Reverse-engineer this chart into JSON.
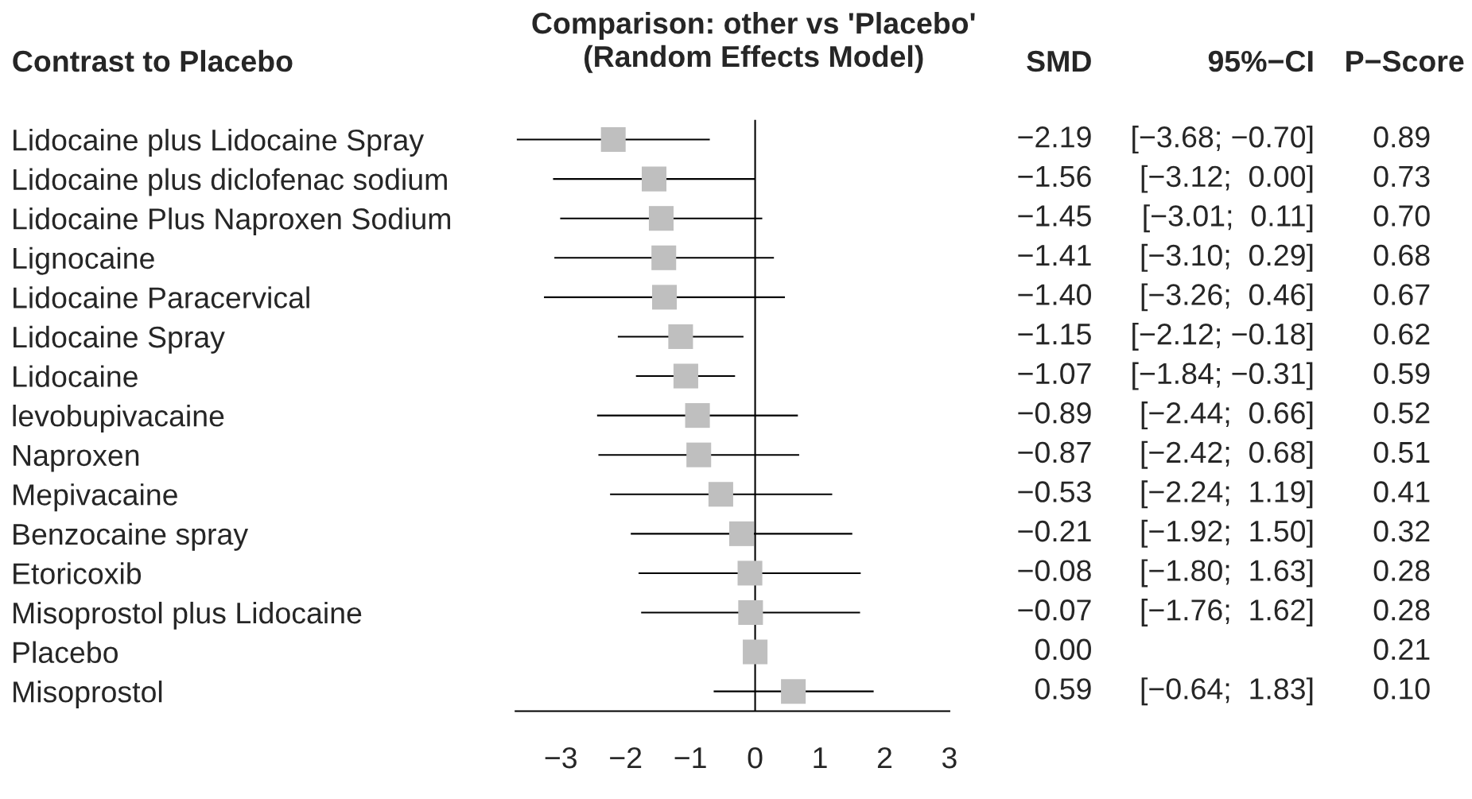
{
  "chart_data": {
    "type": "scatter",
    "orientation": "horizontal",
    "title": "Comparison: other vs 'Placebo'\n(Random Effects Model)",
    "categories": [
      "Lidocaine plus Lidocaine Spray",
      "Lidocaine plus diclofenac sodium",
      "Lidocaine Plus Naproxen Sodium",
      "Lignocaine",
      "Lidocaine Paracervical",
      "Lidocaine Spray",
      "Lidocaine",
      "levobupivacaine",
      "Naproxen",
      "Mepivacaine",
      "Benzocaine spray",
      "Etoricoxib",
      "Misoprostol plus Lidocaine",
      "Placebo",
      "Misoprostol"
    ],
    "values": [
      -2.19,
      -1.56,
      -1.45,
      -1.41,
      -1.4,
      -1.15,
      -1.07,
      -0.89,
      -0.87,
      -0.53,
      -0.21,
      -0.08,
      -0.07,
      0.0,
      0.59
    ],
    "errors": [
      [
        -3.68,
        -0.7
      ],
      [
        -3.12,
        0.0
      ],
      [
        -3.01,
        0.11
      ],
      [
        -3.1,
        0.29
      ],
      [
        -3.26,
        0.46
      ],
      [
        -2.12,
        -0.18
      ],
      [
        -1.84,
        -0.31
      ],
      [
        -2.44,
        0.66
      ],
      [
        -2.42,
        0.68
      ],
      [
        -2.24,
        1.19
      ],
      [
        -1.92,
        1.5
      ],
      [
        -1.8,
        1.63
      ],
      [
        -1.76,
        1.62
      ],
      null,
      [
        -0.64,
        1.83
      ]
    ],
    "value_labels": [
      "−2.19",
      "−1.56",
      "−1.45",
      "−1.41",
      "−1.40",
      "−1.15",
      "−1.07",
      "−0.89",
      "−0.87",
      "−0.53",
      "−0.21",
      "−0.08",
      "−0.07",
      "0.00",
      "0.59"
    ],
    "color": "#bfbfbf",
    "marker": "square",
    "xlim": [
      -3.7,
      3
    ],
    "xticks": [
      {
        "value": -3,
        "label": "−3"
      },
      {
        "value": -2,
        "label": "−2"
      },
      {
        "value": -1,
        "label": "−1"
      },
      0,
      1,
      2,
      3
    ],
    "ref_lines": [
      {
        "axis": "x",
        "value": 0,
        "color": "#000000"
      }
    ],
    "grid": false,
    "annotations": [
      "Contrast to Placebo",
      "SMD",
      "95%−CI",
      "P−Score",
      "[−3.68; −0.70]",
      "[−3.12;  0.00]",
      "[−3.01;  0.11]",
      "[−3.10;  0.29]",
      "[−3.26;  0.46]",
      "[−2.12; −0.18]",
      "[−1.84; −0.31]",
      "[−2.44;  0.66]",
      "[−2.42;  0.68]",
      "[−2.24;  1.19]",
      "[−1.92;  1.50]",
      "[−1.80;  1.63]",
      "[−1.76;  1.62]",
      "[−0.64;  1.83]",
      "0.89",
      "0.73",
      "0.70",
      "0.68",
      "0.67",
      "0.62",
      "0.59",
      "0.52",
      "0.51",
      "0.41",
      "0.32",
      "0.28",
      "0.28",
      "0.21",
      "0.10"
    ]
  }
}
